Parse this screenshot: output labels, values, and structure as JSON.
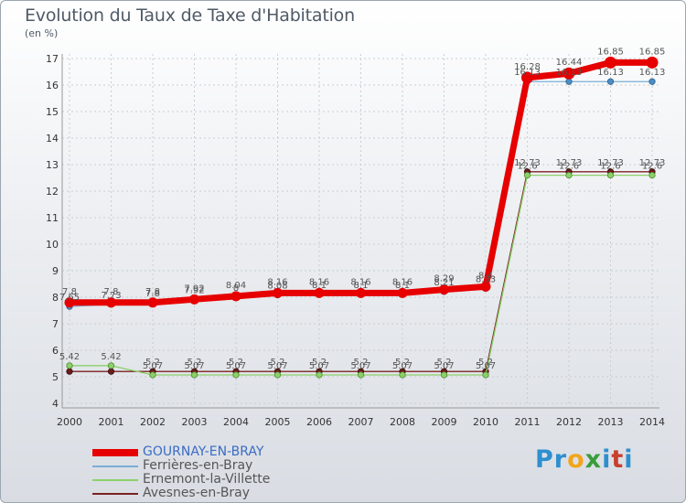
{
  "header": {
    "title": "Evolution du Taux de Taxe d'Habitation",
    "unit": "(en %)"
  },
  "brand": {
    "parts": [
      {
        "text": "Pr",
        "color": "#2e8fcf"
      },
      {
        "text": "o",
        "color": "#f2a51a"
      },
      {
        "text": "x",
        "color": "#3a9d3a"
      },
      {
        "text": "i",
        "color": "#2e8fcf"
      },
      {
        "text": "t",
        "color": "#c8402e"
      },
      {
        "text": "i",
        "color": "#2e8fcf"
      }
    ]
  },
  "chart_data": {
    "type": "line",
    "x": [
      "2000",
      "2001",
      "2002",
      "2003",
      "2004",
      "2005",
      "2006",
      "2007",
      "2008",
      "2009",
      "2010",
      "2011",
      "2012",
      "2013",
      "2014"
    ],
    "ylim": [
      4,
      17
    ],
    "yticks": [
      4,
      5,
      6,
      7,
      8,
      9,
      10,
      11,
      12,
      13,
      14,
      15,
      16,
      17
    ],
    "grid": true,
    "legend_position": "bottom-left",
    "series": [
      {
        "name": "Avesnes-en-Bray",
        "color": "#7b2222",
        "values": [
          5.2,
          5.2,
          5.2,
          5.2,
          5.2,
          5.2,
          5.2,
          5.2,
          5.2,
          5.2,
          5.2,
          12.73,
          12.73,
          12.73,
          12.73
        ],
        "labels": [
          "",
          "",
          "5.2",
          "5.2",
          "5.2",
          "5.2",
          "5.2",
          "5.2",
          "5.2",
          "5.2",
          "5.2",
          "12.73",
          "12.73",
          "12.73",
          "12.73"
        ]
      },
      {
        "name": "Ernemont-la-Villette",
        "color": "#8cd06a",
        "values": [
          5.42,
          5.42,
          5.07,
          5.07,
          5.07,
          5.07,
          5.07,
          5.07,
          5.07,
          5.07,
          5.07,
          12.6,
          12.6,
          12.6,
          12.6
        ],
        "labels": [
          "5.42",
          "5.42",
          "5.07",
          "5.07",
          "5.07",
          "5.07",
          "5.07",
          "5.07",
          "5.07",
          "5.07",
          "5.07",
          "12.6",
          "12.6",
          "12.6",
          "12.6"
        ]
      },
      {
        "name": "Ferrières-en-Bray",
        "color": "#7aaed6",
        "values": [
          7.65,
          7.73,
          7.8,
          7.92,
          8,
          8.08,
          8.1,
          8.1,
          8.1,
          8.21,
          8.33,
          16.13,
          16.13,
          16.13,
          16.13
        ],
        "labels": [
          "7.65",
          "7.73",
          "7.8",
          "7.92",
          "8",
          "8.08",
          "8.1",
          "8.1",
          "8.1",
          "8.21",
          "8.33",
          "16.13",
          "16.13",
          "16.13",
          "16.13"
        ]
      },
      {
        "name": "GOURNAY-EN-BRAY",
        "color": "#e60000",
        "values": [
          7.8,
          7.8,
          7.8,
          7.92,
          8.04,
          8.16,
          8.16,
          8.16,
          8.16,
          8.29,
          8.4,
          16.28,
          16.44,
          16.85,
          16.85
        ],
        "labels": [
          "7.8",
          "7.8",
          "7.8",
          "7.92",
          "8.04",
          "8.16",
          "8.16",
          "8.16",
          "8.16",
          "8.29",
          "8.4",
          "16.28",
          "16.44",
          "16.85",
          "16.85"
        ]
      }
    ]
  },
  "legend": {
    "items": [
      {
        "label": "GOURNAY-EN-BRAY",
        "color": "#e60000",
        "thick": true
      },
      {
        "label": "Ferrières-en-Bray",
        "color": "#7aaed6",
        "thick": false
      },
      {
        "label": "Ernemont-la-Villette",
        "color": "#8cd06a",
        "thick": false
      },
      {
        "label": "Avesnes-en-Bray",
        "color": "#7b2222",
        "thick": false
      }
    ]
  }
}
